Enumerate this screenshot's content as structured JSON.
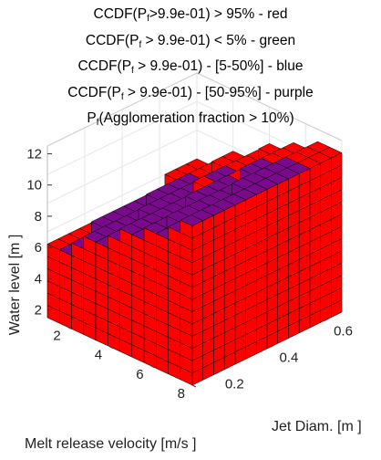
{
  "titles": [
    {
      "pre": "CCDF(P",
      "sub": "f",
      "post": ">9.9e-01) > 95% - red"
    },
    {
      "pre": "CCDF(P",
      "sub": "f",
      "post": " > 9.9e-01) < 5% - green"
    },
    {
      "pre": "CCDF(P",
      "sub": "f",
      "post": " > 9.9e-01) - [5-50%] - blue"
    },
    {
      "pre": "CCDF(P",
      "sub": "f",
      "post": " > 9.9e-01) - [50-95%] - purple"
    },
    {
      "pre": "P",
      "sub": "f",
      "post": "(Agglomeration fraction > 10%)"
    }
  ],
  "axes": {
    "x_label": "Melt release velocity  [m/s ]",
    "y_label": "Jet Diam.  [m ]",
    "z_label": "Water level  [m ]",
    "x_ticks": [
      "2",
      "4",
      "6",
      "8"
    ],
    "y_ticks": [
      "0.2",
      "0.4",
      "0.6"
    ],
    "z_ticks": [
      "2",
      "4",
      "6",
      "8",
      "10",
      "12"
    ]
  },
  "chart_data": {
    "type": "3d-voxel",
    "x": {
      "label": "Melt release velocity  [m/s ]",
      "range": [
        1,
        8
      ],
      "ticks": [
        2,
        4,
        6,
        8
      ]
    },
    "y": {
      "label": "Jet Diam.  [m ]",
      "range": [
        0.1,
        0.65
      ],
      "ticks": [
        0.2,
        0.4,
        0.6
      ]
    },
    "z": {
      "label": "Water level  [m ]",
      "range": [
        1.5,
        12.5
      ],
      "ticks": [
        2,
        4,
        6,
        8,
        10,
        12
      ]
    },
    "grid": true,
    "categories": [
      {
        "condition": "CCDF > 95%",
        "color": "#ff0000"
      },
      {
        "condition": "CCDF < 5%",
        "color": "#00aa00"
      },
      {
        "condition": "CCDF 5-50%",
        "color": "#0000ff"
      },
      {
        "condition": "CCDF 50-95%",
        "color": "#7a0a8c"
      }
    ],
    "colors": {
      "red": "#ff0000",
      "purple": "#7a0a8c",
      "edge": "#000000"
    }
  }
}
